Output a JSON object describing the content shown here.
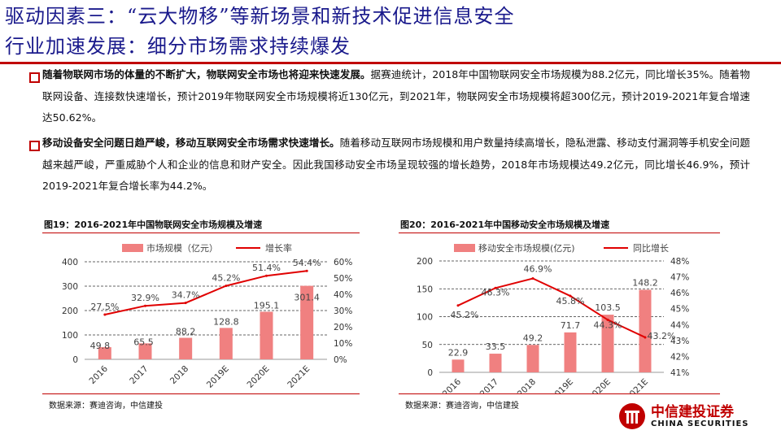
{
  "title": {
    "line1": "驱动因素三：“云大物移”等新场景和新技术促进信息安全",
    "line2": "行业加速发展：细分市场需求持续爆发"
  },
  "bullets": [
    {
      "bold": "随着物联网市场的体量的不断扩大，物联网安全市场也将迎来快速发展。",
      "text": "据赛迪统计，2018年中国物联网安全市场规模为88.2亿元，同比增长35%。随着物联网设备、连接数快速增长，预计2019年物联网安全市场规模将近130亿元，到2021年，物联网安全市场规模将超300亿元，预计2019-2021年复合增速达50.62%。"
    },
    {
      "bold": "移动设备安全问题日趋严峻，移动互联网安全市场需求快速增长。",
      "text": "随着移动互联网市场规模和用户数量持续高增长，隐私泄露、移动支付漏洞等手机安全问题越来越严峻，严重威胁个人和企业的信息和财产安全。因此我国移动安全市场呈现较强的增长趋势，2018年市场规模达49.2亿元，同比增长46.9%，预计2019-2021年复合增长率为44.2%。"
    }
  ],
  "figures": {
    "fig19_title": "图19：2016-2021年中国物联网安全市场规模及增速",
    "fig20_title": "图20：2016-2021年中国移动安全市场规模及增速",
    "source1": "数据来源：赛迪咨询，中信建投",
    "source2": "数据来源：赛迪咨询，中信建投"
  },
  "chart_data": [
    {
      "type": "bar",
      "title": "2016-2021年中国物联网安全市场规模及增速",
      "categories": [
        "2016",
        "2017",
        "2018",
        "2019E",
        "2020E",
        "2021E"
      ],
      "series": [
        {
          "name": "市场规模（亿元）",
          "kind": "bar",
          "axis": "left",
          "values": [
            49.8,
            65.5,
            88.2,
            128.8,
            195.1,
            301.4
          ],
          "labels": [
            "49.8",
            "65.5",
            "88.2",
            "128.8",
            "195.1",
            "301.4"
          ]
        },
        {
          "name": "增长率",
          "kind": "line",
          "axis": "right",
          "values": [
            27.5,
            32.9,
            34.7,
            45.2,
            51.4,
            54.4
          ],
          "labels": [
            "27.5%",
            "32.9%",
            "34.7%",
            "45.2%",
            "51.4%",
            "54.4%"
          ]
        }
      ],
      "ylim": [
        0,
        400
      ],
      "yticks": [
        0,
        100,
        200,
        300,
        400
      ],
      "ytick_labels": [
        "0",
        "100",
        "200",
        "300",
        "400"
      ],
      "y2lim": [
        0,
        60
      ],
      "y2ticks": [
        0,
        10,
        20,
        30,
        40,
        50,
        60
      ],
      "y2tick_labels": [
        "0%",
        "10%",
        "20%",
        "30%",
        "40%",
        "50%",
        "60%"
      ],
      "grid": true,
      "legend": "top"
    },
    {
      "type": "bar",
      "title": "2016-2021年中国移动安全市场规模及增速",
      "categories": [
        "2016",
        "2017",
        "2018",
        "2019E",
        "2020E",
        "2021E"
      ],
      "series": [
        {
          "name": "移动安全市场规模(亿元)",
          "kind": "bar",
          "axis": "left",
          "values": [
            22.9,
            33.5,
            49.2,
            71.7,
            103.5,
            148.2
          ],
          "labels": [
            "22.9",
            "33.5",
            "49.2",
            "71.7",
            "103.5",
            "148.2"
          ]
        },
        {
          "name": "同比增长",
          "kind": "line",
          "axis": "right",
          "values": [
            45.2,
            46.3,
            46.9,
            45.8,
            44.3,
            43.2
          ],
          "labels": [
            "45.2%",
            "46.3%",
            "46.9%",
            "45.8%",
            "44.3%",
            "43.2%"
          ]
        }
      ],
      "ylim": [
        0,
        200
      ],
      "yticks": [
        0,
        50,
        100,
        150,
        200
      ],
      "ytick_labels": [
        "0",
        "50",
        "100",
        "150",
        "200"
      ],
      "y2lim": [
        41,
        48
      ],
      "y2ticks": [
        41,
        42,
        43,
        44,
        45,
        46,
        47,
        48
      ],
      "y2tick_labels": [
        "41%",
        "42%",
        "43%",
        "44%",
        "45%",
        "46%",
        "47%",
        "48%"
      ],
      "grid": true,
      "legend": "top"
    }
  ],
  "logo": {
    "cn": "中信建投证券",
    "en": "CHINA SECURITIES"
  },
  "colors": {
    "title": "#1a1a8c",
    "accent": "#c00000",
    "bar": "#f08080",
    "line": "#e00000",
    "grid": "#333333"
  }
}
